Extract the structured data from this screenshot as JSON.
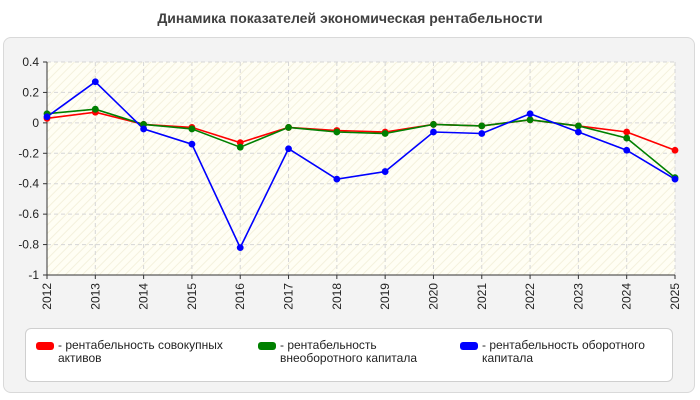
{
  "chart_data": {
    "type": "line",
    "title": "Динамика показателей экономическая рентабельности",
    "xlabel": "",
    "ylabel": "",
    "categories": [
      "2012",
      "2013",
      "2014",
      "2015",
      "2016",
      "2017",
      "2018",
      "2019",
      "2020",
      "2021",
      "2022",
      "2023",
      "2024",
      "2025"
    ],
    "ylim": [
      -1,
      0.4
    ],
    "yticks": [
      0.4,
      0.2,
      0,
      -0.2,
      -0.4,
      -0.6,
      -0.8,
      -1
    ],
    "ytick_labels": [
      "0.4",
      "0.2",
      "0",
      "-0.2",
      "-0.4",
      "-0.6",
      "-0.8",
      "-1"
    ],
    "grid": true,
    "legend_position": "bottom",
    "series": [
      {
        "name": "- рентабельность совокупных активов",
        "color": "#ff0000",
        "values": [
          0.03,
          0.07,
          -0.01,
          -0.03,
          -0.13,
          -0.03,
          -0.05,
          -0.06,
          -0.01,
          -0.02,
          0.02,
          -0.02,
          -0.06,
          -0.18
        ]
      },
      {
        "name": "- рентабельность внеоборотного капитала",
        "color": "#008000",
        "values": [
          0.06,
          0.09,
          -0.01,
          -0.04,
          -0.16,
          -0.03,
          -0.06,
          -0.07,
          -0.01,
          -0.02,
          0.02,
          -0.02,
          -0.1,
          -0.36
        ]
      },
      {
        "name": "- рентабельность оборотного капитала",
        "color": "#0000ff",
        "values": [
          0.04,
          0.27,
          -0.04,
          -0.14,
          -0.82,
          -0.17,
          -0.37,
          -0.32,
          -0.06,
          -0.07,
          0.06,
          -0.06,
          -0.18,
          -0.37
        ]
      }
    ]
  }
}
